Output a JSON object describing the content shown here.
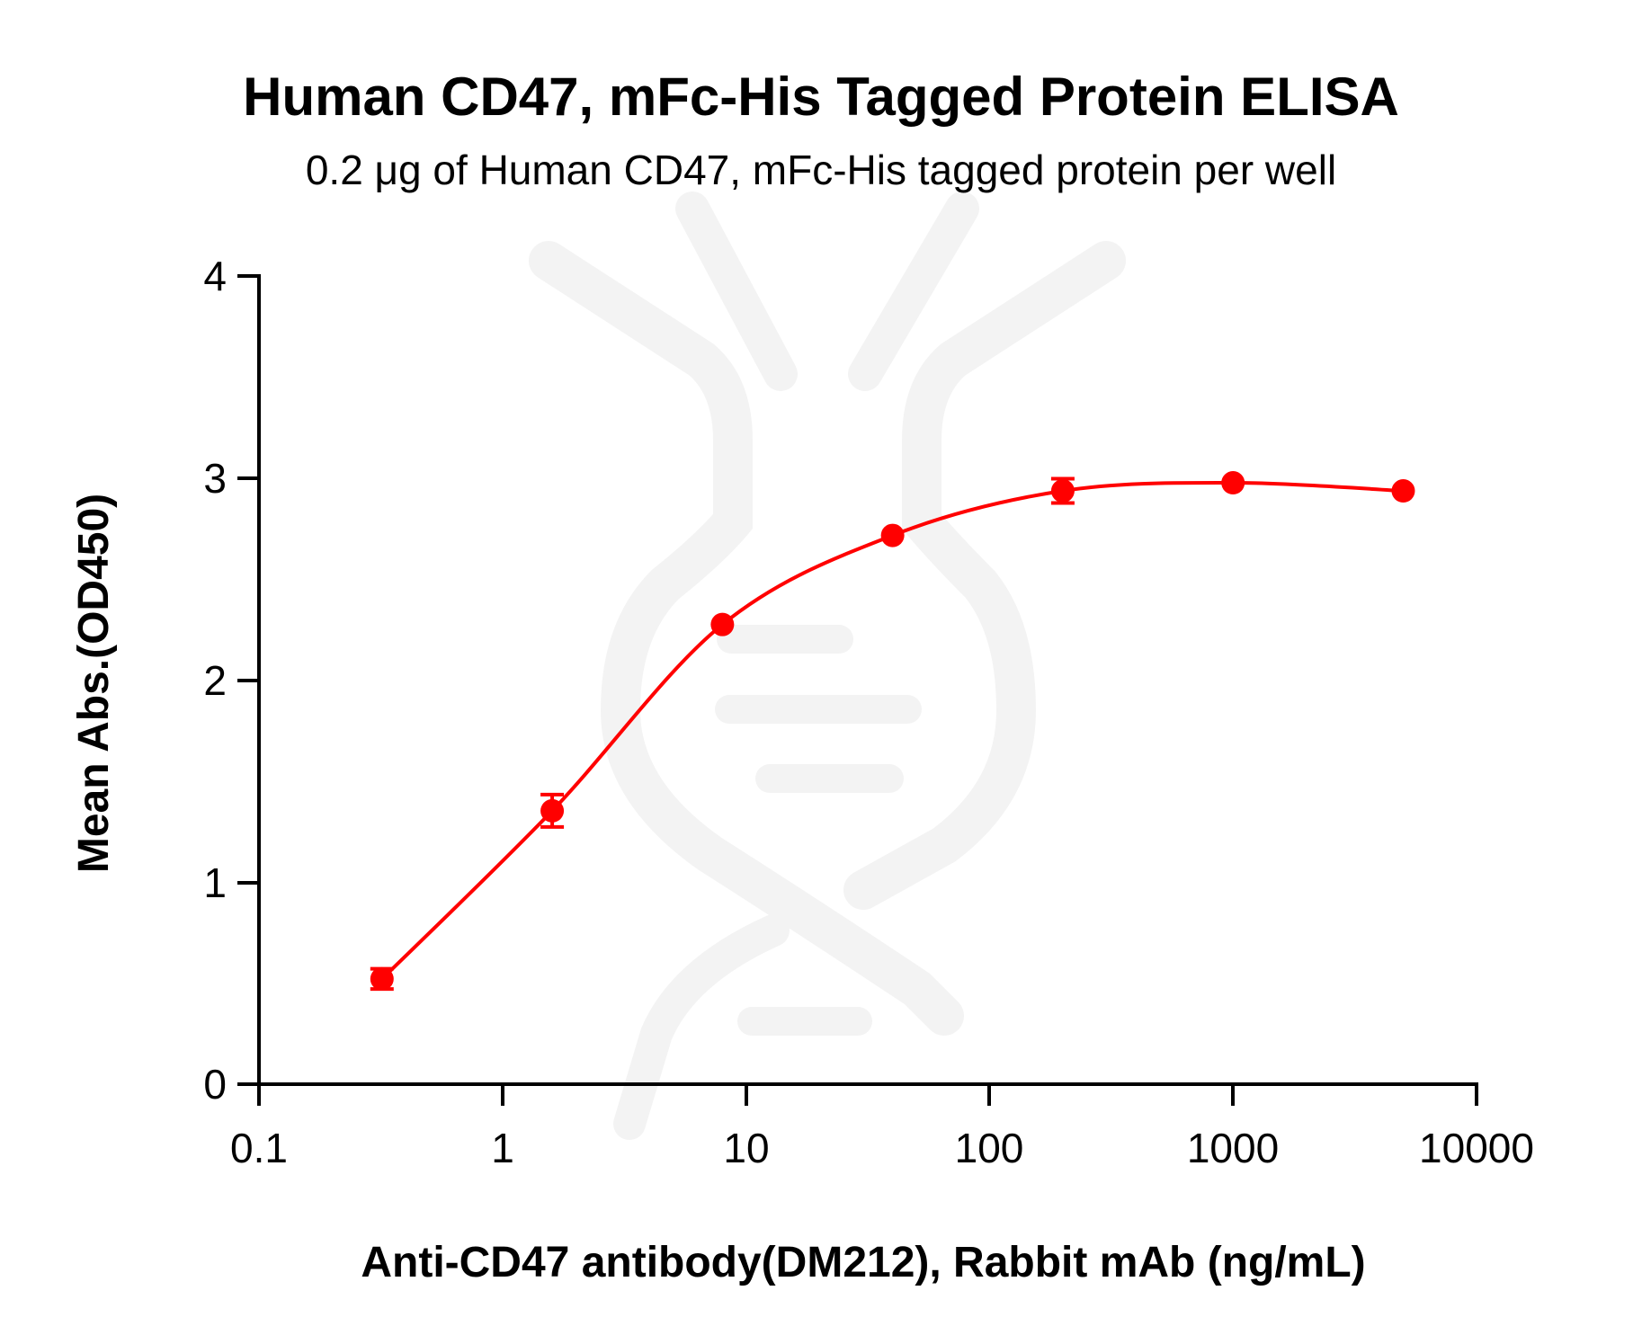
{
  "chart_data": {
    "type": "scatter",
    "title": "Human CD47, mFc-His Tagged Protein ELISA",
    "subtitle": "0.2 μg of Human CD47, mFc-His tagged protein per well",
    "xlabel": "Anti-CD47 antibody(DM212), Rabbit mAb (ng/mL)",
    "ylabel": "Mean Abs.(OD450)",
    "xscale": "log",
    "xlim": [
      0.1,
      10000
    ],
    "ylim": [
      0,
      4
    ],
    "x_ticks": [
      "0.1",
      "1",
      "10",
      "100",
      "1000",
      "10000"
    ],
    "y_ticks": [
      "0",
      "1",
      "2",
      "3",
      "4"
    ],
    "grid": false,
    "legend": null,
    "fit": "4PL sigmoidal curve",
    "color": "#ff0000",
    "series": [
      {
        "name": "Anti-CD47 antibody(DM212)",
        "x": [
          0.32,
          1.6,
          8,
          40,
          200,
          1000,
          5000
        ],
        "y": [
          0.52,
          1.35,
          2.27,
          2.71,
          2.93,
          2.97,
          2.93
        ],
        "error": [
          0.05,
          0.08,
          0.02,
          0.02,
          0.06,
          0.02,
          0.02
        ]
      }
    ]
  }
}
